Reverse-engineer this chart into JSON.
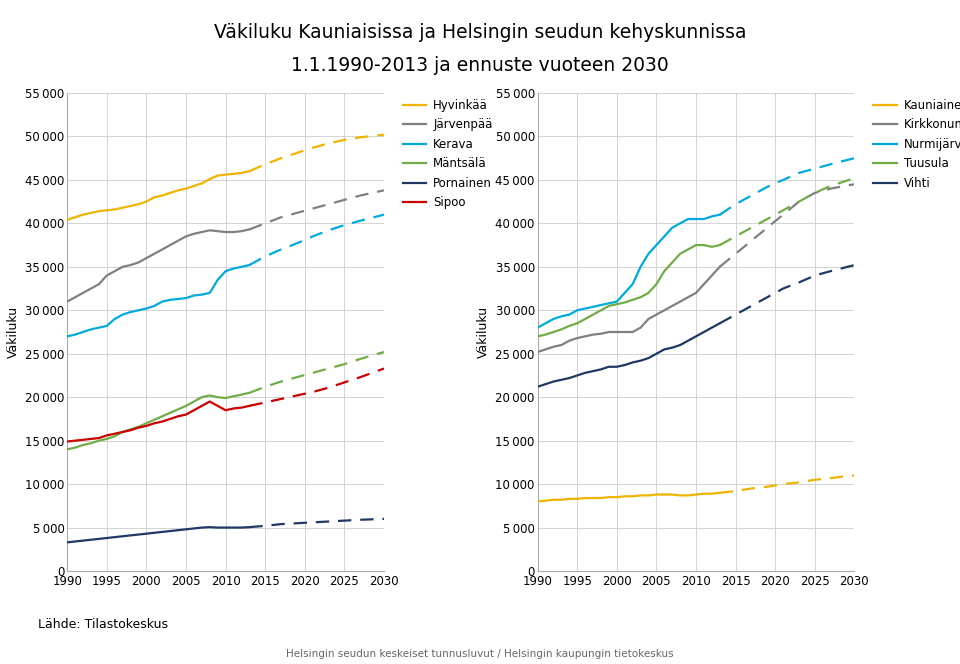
{
  "title_line1": "Väkiluku Kauniaisissa ja Helsingin seudun kehyskunnissa",
  "title_line2": "1.1.1990-2013 ja ennuste vuoteen 2030",
  "ylabel": "Väkiluku",
  "footer_left": "Lähde: Tilastokeskus",
  "footer_center": "Helsingin seudun keskeiset tunnusluvut / Helsingin kaupungin tietokeskus",
  "yticks": [
    0,
    5000,
    10000,
    15000,
    20000,
    25000,
    30000,
    35000,
    40000,
    45000,
    50000,
    55000
  ],
  "xticks": [
    1990,
    1995,
    2000,
    2005,
    2010,
    2015,
    2020,
    2025,
    2030
  ],
  "left_series": {
    "Hyvinkää": {
      "color": "#F0B400",
      "solid_x": [
        1990,
        1991,
        1992,
        1993,
        1994,
        1995,
        1996,
        1997,
        1998,
        1999,
        2000,
        2001,
        2002,
        2003,
        2004,
        2005,
        2006,
        2007,
        2008,
        2009,
        2010,
        2011,
        2012,
        2013
      ],
      "solid_y": [
        40400,
        40700,
        41000,
        41200,
        41400,
        41500,
        41600,
        41800,
        42000,
        42200,
        42500,
        43000,
        43200,
        43500,
        43800,
        44000,
        44300,
        44600,
        45100,
        45500,
        45600,
        45700,
        45800,
        46000
      ],
      "dash_x": [
        2013,
        2015,
        2017,
        2019,
        2021,
        2023,
        2025,
        2027,
        2030
      ],
      "dash_y": [
        46000,
        46800,
        47500,
        48100,
        48700,
        49200,
        49600,
        49900,
        50200
      ]
    },
    "Järvenpää": {
      "color": "#808080",
      "solid_x": [
        1990,
        1991,
        1992,
        1993,
        1994,
        1995,
        1996,
        1997,
        1998,
        1999,
        2000,
        2001,
        2002,
        2003,
        2004,
        2005,
        2006,
        2007,
        2008,
        2009,
        2010,
        2011,
        2012,
        2013
      ],
      "solid_y": [
        31000,
        31500,
        32000,
        32500,
        33000,
        34000,
        34500,
        35000,
        35200,
        35500,
        36000,
        36500,
        37000,
        37500,
        38000,
        38500,
        38800,
        39000,
        39200,
        39100,
        39000,
        39000,
        39100,
        39300
      ],
      "dash_x": [
        2013,
        2015,
        2017,
        2019,
        2021,
        2023,
        2025,
        2027,
        2030
      ],
      "dash_y": [
        39300,
        40000,
        40700,
        41200,
        41700,
        42200,
        42700,
        43200,
        43800
      ]
    },
    "Kerava": {
      "color": "#00AADD",
      "solid_x": [
        1990,
        1991,
        1992,
        1993,
        1994,
        1995,
        1996,
        1997,
        1998,
        1999,
        2000,
        2001,
        2002,
        2003,
        2004,
        2005,
        2006,
        2007,
        2008,
        2009,
        2010,
        2011,
        2012,
        2013
      ],
      "solid_y": [
        27000,
        27200,
        27500,
        27800,
        28000,
        28200,
        29000,
        29500,
        29800,
        30000,
        30200,
        30500,
        31000,
        31200,
        31300,
        31400,
        31700,
        31800,
        32000,
        33500,
        34500,
        34800,
        35000,
        35200
      ],
      "dash_x": [
        2013,
        2015,
        2017,
        2019,
        2021,
        2023,
        2025,
        2027,
        2030
      ],
      "dash_y": [
        35200,
        36200,
        37000,
        37700,
        38500,
        39200,
        39800,
        40300,
        41000
      ]
    },
    "Mäntsälä": {
      "color": "#70AD47",
      "solid_x": [
        1990,
        1991,
        1992,
        1993,
        1994,
        1995,
        1996,
        1997,
        1998,
        1999,
        2000,
        2001,
        2002,
        2003,
        2004,
        2005,
        2006,
        2007,
        2008,
        2009,
        2010,
        2011,
        2012,
        2013
      ],
      "solid_y": [
        14000,
        14200,
        14500,
        14700,
        15000,
        15200,
        15500,
        16000,
        16300,
        16600,
        17000,
        17400,
        17800,
        18200,
        18600,
        19000,
        19500,
        20000,
        20200,
        20000,
        19900,
        20100,
        20300,
        20500
      ],
      "dash_x": [
        2013,
        2015,
        2017,
        2019,
        2021,
        2023,
        2025,
        2027,
        2030
      ],
      "dash_y": [
        20500,
        21200,
        21800,
        22300,
        22800,
        23300,
        23800,
        24400,
        25200
      ]
    },
    "Pornainen": {
      "color": "#1F3864",
      "solid_x": [
        1990,
        1991,
        1992,
        1993,
        1994,
        1995,
        1996,
        1997,
        1998,
        1999,
        2000,
        2001,
        2002,
        2003,
        2004,
        2005,
        2006,
        2007,
        2008,
        2009,
        2010,
        2011,
        2012,
        2013
      ],
      "solid_y": [
        3300,
        3400,
        3500,
        3600,
        3700,
        3800,
        3900,
        4000,
        4100,
        4200,
        4300,
        4400,
        4500,
        4600,
        4700,
        4800,
        4900,
        5000,
        5050,
        5000,
        5000,
        5000,
        5000,
        5050
      ],
      "dash_x": [
        2013,
        2015,
        2017,
        2019,
        2021,
        2023,
        2025,
        2027,
        2030
      ],
      "dash_y": [
        5050,
        5200,
        5400,
        5500,
        5600,
        5700,
        5800,
        5900,
        6000
      ]
    },
    "Sipoo": {
      "color": "#CC0000",
      "solid_x": [
        1990,
        1991,
        1992,
        1993,
        1994,
        1995,
        1996,
        1997,
        1998,
        1999,
        2000,
        2001,
        2002,
        2003,
        2004,
        2005,
        2006,
        2007,
        2008,
        2009,
        2010,
        2011,
        2012,
        2013
      ],
      "solid_y": [
        14900,
        15000,
        15100,
        15200,
        15300,
        15600,
        15800,
        16000,
        16200,
        16500,
        16700,
        17000,
        17200,
        17500,
        17800,
        18000,
        18500,
        19000,
        19500,
        19000,
        18500,
        18700,
        18800,
        19000
      ],
      "dash_x": [
        2013,
        2015,
        2017,
        2019,
        2021,
        2023,
        2025,
        2027,
        2030
      ],
      "dash_y": [
        19000,
        19400,
        19800,
        20200,
        20600,
        21100,
        21700,
        22300,
        23300
      ]
    }
  },
  "right_series": {
    "Kauniainen": {
      "color": "#F0B400",
      "solid_x": [
        1990,
        1991,
        1992,
        1993,
        1994,
        1995,
        1996,
        1997,
        1998,
        1999,
        2000,
        2001,
        2002,
        2003,
        2004,
        2005,
        2006,
        2007,
        2008,
        2009,
        2010,
        2011,
        2012,
        2013
      ],
      "solid_y": [
        8000,
        8100,
        8200,
        8200,
        8300,
        8300,
        8400,
        8400,
        8400,
        8500,
        8500,
        8600,
        8600,
        8700,
        8700,
        8800,
        8800,
        8800,
        8700,
        8700,
        8800,
        8900,
        8900,
        9000
      ],
      "dash_x": [
        2013,
        2015,
        2017,
        2019,
        2021,
        2023,
        2025,
        2027,
        2030
      ],
      "dash_y": [
        9000,
        9200,
        9500,
        9700,
        10000,
        10200,
        10500,
        10700,
        11000
      ]
    },
    "Kirkkonummi": {
      "color": "#808080",
      "solid_x": [
        1990,
        1991,
        1992,
        1993,
        1994,
        1995,
        1996,
        1997,
        1998,
        1999,
        2000,
        2001,
        2002,
        2003,
        2004,
        2005,
        2006,
        2007,
        2008,
        2009,
        2010,
        2011,
        2012,
        2013
      ],
      "solid_y": [
        25200,
        25500,
        25800,
        26000,
        26500,
        26800,
        27000,
        27200,
        27300,
        27500,
        27500,
        27500,
        27500,
        28000,
        29000,
        29500,
        30000,
        30500,
        31000,
        31500,
        32000,
        33000,
        34000,
        35000
      ],
      "dash_x": [
        2013,
        2015,
        2017,
        2019,
        2021,
        2023,
        2025,
        2027,
        2030
      ],
      "dash_y": [
        35000,
        36500,
        38000,
        39500,
        41000,
        42500,
        43500,
        44000,
        44500
      ]
    },
    "Nurmijärvi": {
      "color": "#00AADD",
      "solid_x": [
        1990,
        1991,
        1992,
        1993,
        1994,
        1995,
        1996,
        1997,
        1998,
        1999,
        2000,
        2001,
        2002,
        2003,
        2004,
        2005,
        2006,
        2007,
        2008,
        2009,
        2010,
        2011,
        2012,
        2013
      ],
      "solid_y": [
        28000,
        28500,
        29000,
        29300,
        29500,
        30000,
        30200,
        30400,
        30600,
        30800,
        31000,
        32000,
        33000,
        35000,
        36500,
        37500,
        38500,
        39500,
        40000,
        40500,
        40500,
        40500,
        40800,
        41000
      ],
      "dash_x": [
        2013,
        2015,
        2017,
        2019,
        2021,
        2023,
        2025,
        2027,
        2030
      ],
      "dash_y": [
        41000,
        42200,
        43200,
        44200,
        45000,
        45800,
        46300,
        46800,
        47500
      ]
    },
    "Tuusula": {
      "color": "#70AD47",
      "solid_x": [
        1990,
        1991,
        1992,
        1993,
        1994,
        1995,
        1996,
        1997,
        1998,
        1999,
        2000,
        2001,
        2002,
        2003,
        2004,
        2005,
        2006,
        2007,
        2008,
        2009,
        2010,
        2011,
        2012,
        2013
      ],
      "solid_y": [
        27000,
        27200,
        27500,
        27800,
        28200,
        28500,
        29000,
        29500,
        30000,
        30500,
        30700,
        30900,
        31200,
        31500,
        32000,
        33000,
        34500,
        35500,
        36500,
        37000,
        37500,
        37500,
        37300,
        37500
      ],
      "dash_x": [
        2013,
        2015,
        2017,
        2019,
        2021,
        2023,
        2025,
        2027,
        2030
      ],
      "dash_y": [
        37500,
        38500,
        39500,
        40500,
        41500,
        42500,
        43500,
        44300,
        45200
      ]
    },
    "Vihti": {
      "color": "#1F3864",
      "solid_x": [
        1990,
        1991,
        1992,
        1993,
        1994,
        1995,
        1996,
        1997,
        1998,
        1999,
        2000,
        2001,
        2002,
        2003,
        2004,
        2005,
        2006,
        2007,
        2008,
        2009,
        2010,
        2011,
        2012,
        2013
      ],
      "solid_y": [
        21200,
        21500,
        21800,
        22000,
        22200,
        22500,
        22800,
        23000,
        23200,
        23500,
        23500,
        23700,
        24000,
        24200,
        24500,
        25000,
        25500,
        25700,
        26000,
        26500,
        27000,
        27500,
        28000,
        28500
      ],
      "dash_x": [
        2013,
        2015,
        2017,
        2019,
        2021,
        2023,
        2025,
        2027,
        2030
      ],
      "dash_y": [
        28500,
        29500,
        30500,
        31500,
        32500,
        33200,
        34000,
        34500,
        35200
      ]
    }
  }
}
